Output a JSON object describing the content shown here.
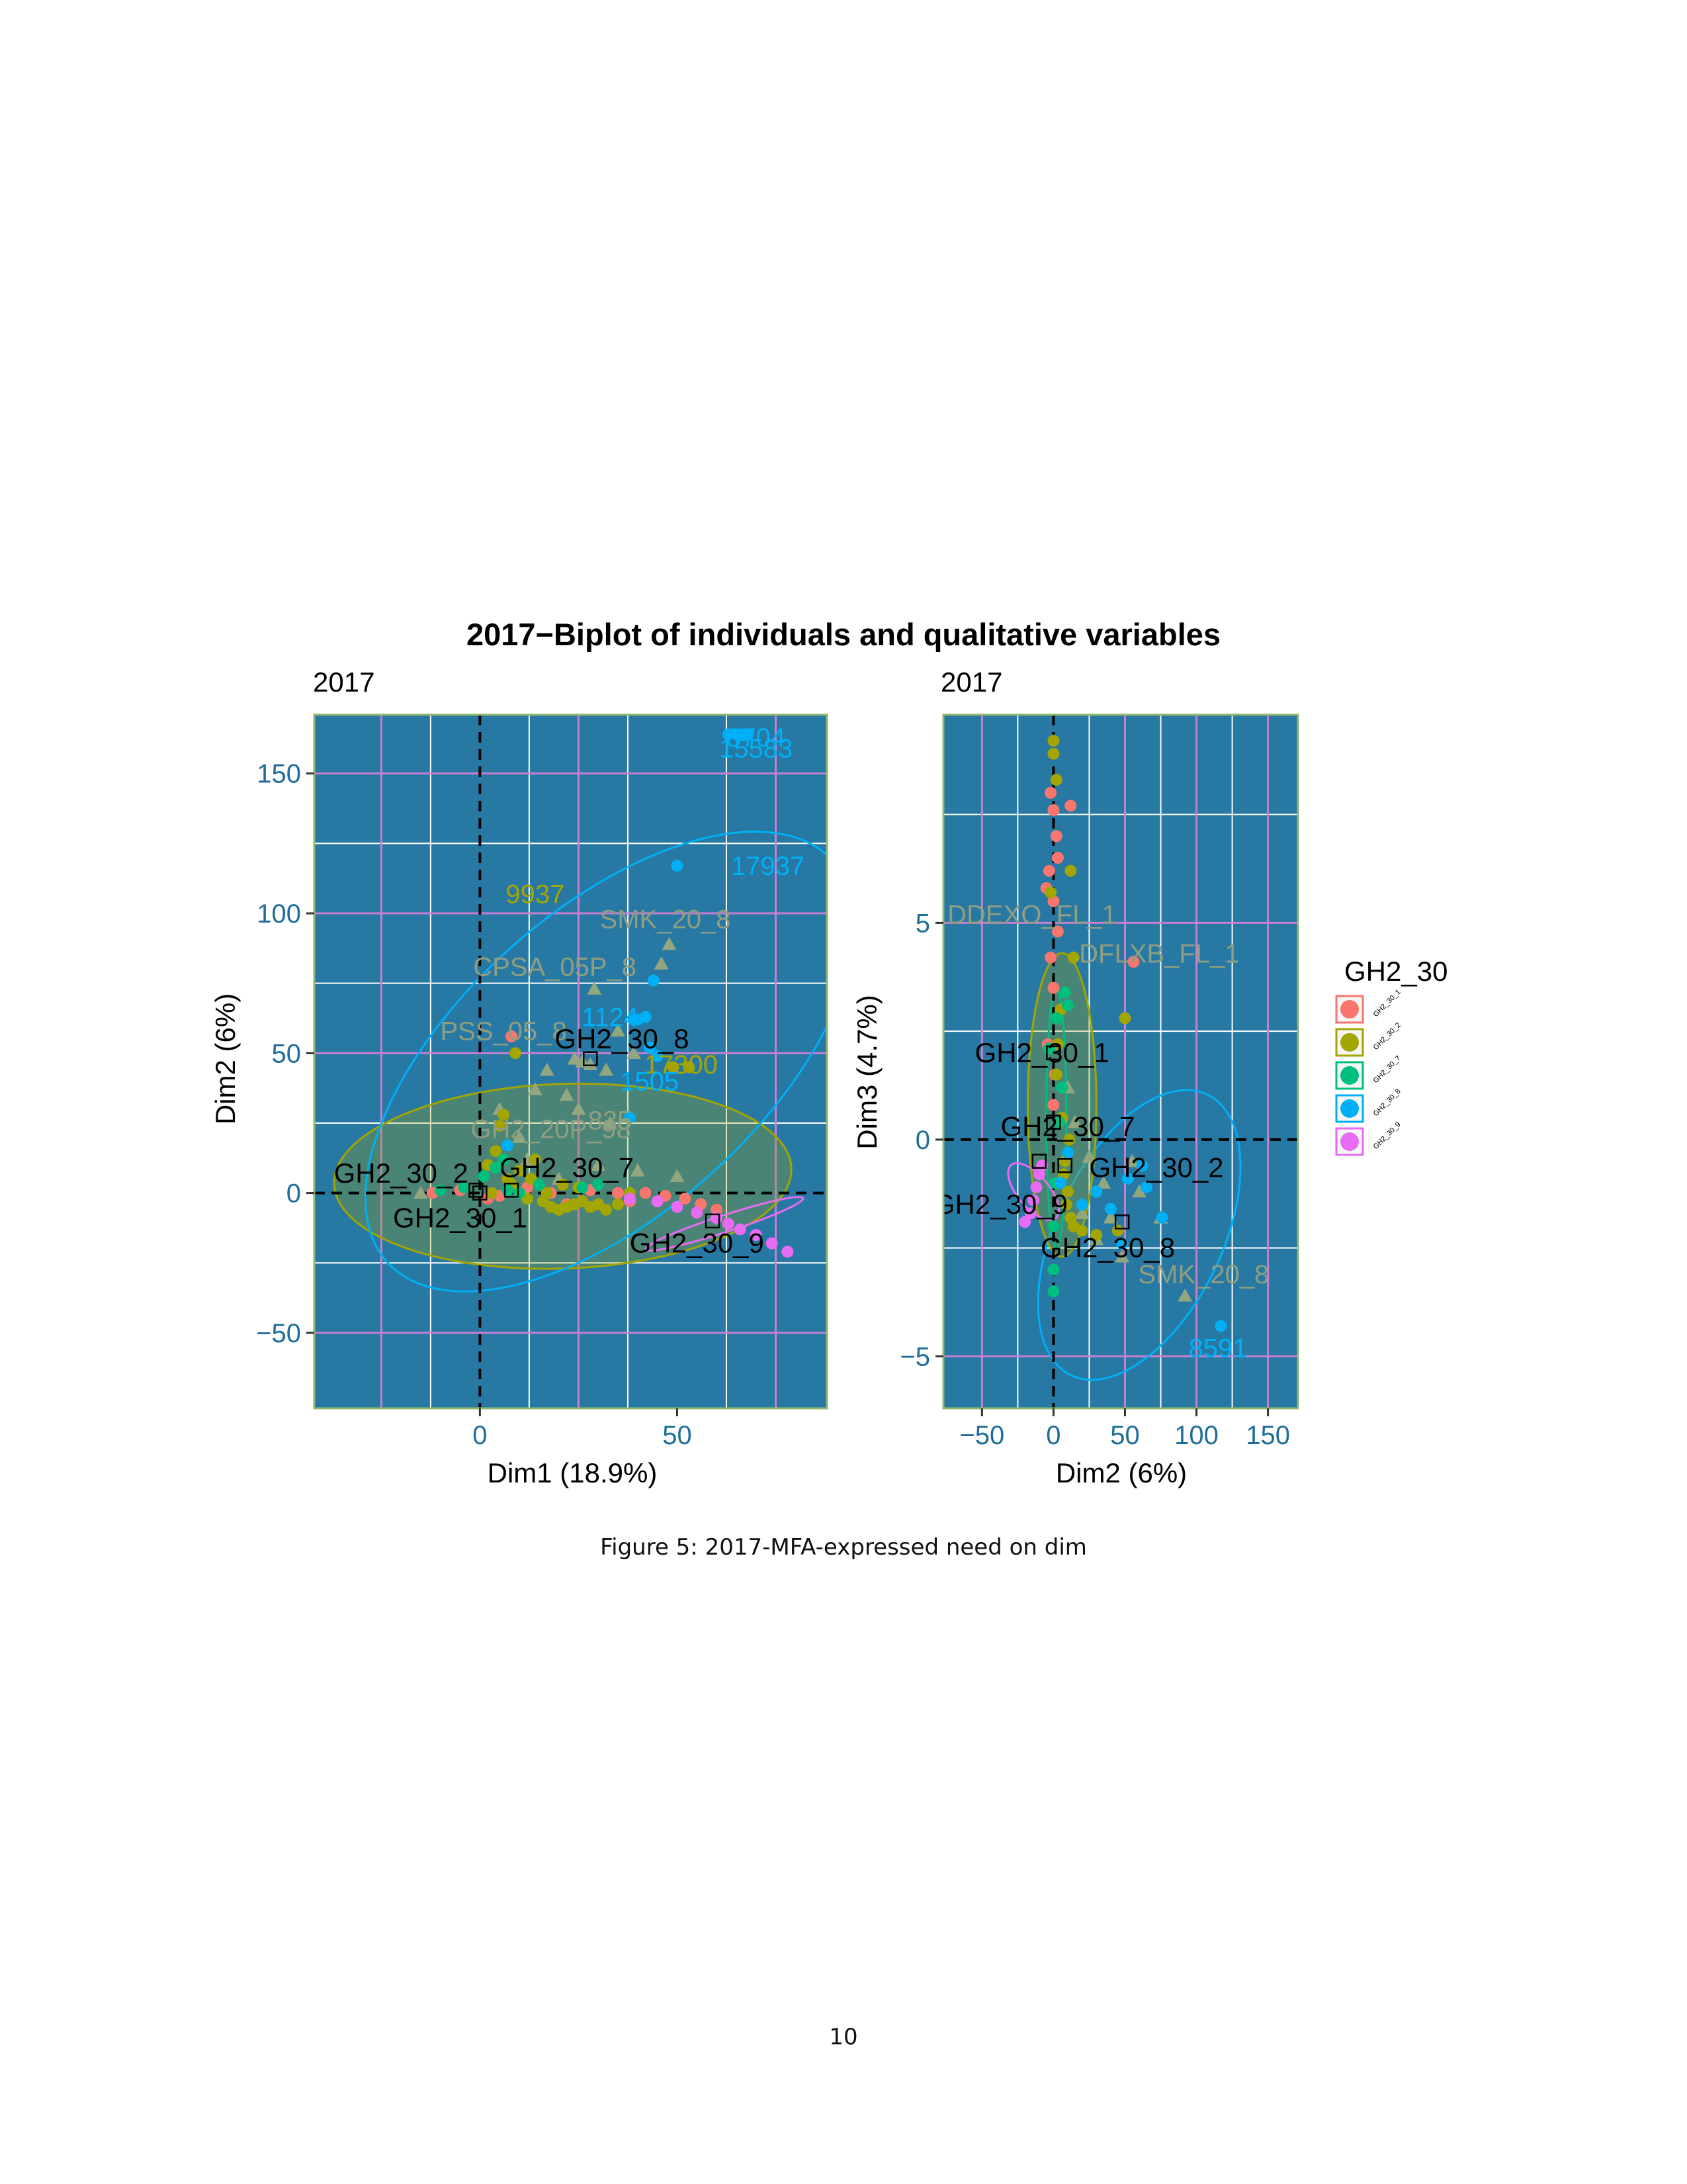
{
  "page": {
    "caption": "Figure 5: 2017-MFA-expressed need on dim",
    "page_number": "10"
  },
  "figure": {
    "title": "2017−Biplot of individuals and qualitative variables",
    "legend": {
      "title": "GH2_30",
      "placement": "right",
      "items": [
        {
          "label": "GH2_30_1",
          "color": "#F8766D"
        },
        {
          "label": "GH2_30_2",
          "color": "#A3A500"
        },
        {
          "label": "GH2_30_7",
          "color": "#00BF7D"
        },
        {
          "label": "GH2_30_8",
          "color": "#00B0F6"
        },
        {
          "label": "GH2_30_9",
          "color": "#E76BF3"
        }
      ]
    }
  },
  "colors": {
    "panel_bg": "#2878A4",
    "grid_major": "#FFFFFF",
    "grid_zero_style": "#C97FD0",
    "panel_border": "#8FB870",
    "axis_text": "#1F6E99",
    "variable_label": "#8E9E80",
    "triangle": "#93A77F"
  },
  "chart_data": [
    {
      "type": "scatter",
      "panel_title": "2017",
      "xlabel": "Dim1 (18.9%)",
      "ylabel": "Dim2 (6%)",
      "xlim": [
        -42,
        88
      ],
      "ylim": [
        -77,
        171
      ],
      "xticks": [
        0,
        50
      ],
      "yticks": [
        -50,
        0,
        50,
        100,
        150
      ],
      "xtick_labels": [
        "0",
        "50"
      ],
      "ytick_labels": [
        "−50",
        "0",
        "50",
        "100",
        "150"
      ],
      "purple_x_lines": [
        -25,
        25,
        75
      ],
      "purple_y_lines": [
        -50,
        50,
        100,
        150
      ],
      "white_x_lines": [
        -12.5,
        12.5,
        37.5,
        62.5
      ],
      "white_y_lines": [
        -25,
        25,
        75,
        125
      ],
      "series": [
        {
          "name": "GH2_30_1",
          "color": "#F8766D",
          "points": [
            [
              -12,
              0
            ],
            [
              -5,
              1
            ],
            [
              2,
              -2
            ],
            [
              5,
              -1
            ],
            [
              8,
              56
            ],
            [
              12,
              2
            ],
            [
              18,
              0
            ],
            [
              22,
              -4
            ],
            [
              28,
              1
            ],
            [
              35,
              0
            ],
            [
              38,
              -3
            ],
            [
              42,
              0
            ],
            [
              47,
              -1
            ],
            [
              52,
              -2
            ],
            [
              56,
              -4
            ],
            [
              60,
              -6
            ]
          ]
        },
        {
          "name": "GH2_30_2",
          "color": "#A3A500",
          "points": [
            [
              3,
              0
            ],
            [
              2,
              10
            ],
            [
              4,
              15
            ],
            [
              5,
              24
            ],
            [
              6,
              28
            ],
            [
              7,
              5
            ],
            [
              8,
              3
            ],
            [
              9,
              50
            ],
            [
              10,
              8
            ],
            [
              12,
              -2
            ],
            [
              14,
              12
            ],
            [
              16,
              -3
            ],
            [
              18,
              -5
            ],
            [
              20,
              -6
            ],
            [
              22,
              -5
            ],
            [
              24,
              -4
            ],
            [
              26,
              -3
            ],
            [
              28,
              -5
            ],
            [
              30,
              -4
            ],
            [
              32,
              -6
            ],
            [
              35,
              -4
            ],
            [
              38,
              0
            ],
            [
              49,
              45
            ],
            [
              53,
              45
            ],
            [
              13,
              5
            ],
            [
              17,
              0
            ],
            [
              21,
              3
            ],
            [
              25,
              2
            ]
          ]
        },
        {
          "name": "GH2_30_7",
          "color": "#00BF7D",
          "points": [
            [
              -10,
              1
            ],
            [
              -4,
              2
            ],
            [
              1,
              6
            ],
            [
              4,
              9
            ],
            [
              6,
              12
            ],
            [
              7,
              1
            ],
            [
              10,
              0
            ],
            [
              15,
              3
            ],
            [
              26,
              2
            ],
            [
              30,
              3
            ]
          ]
        },
        {
          "name": "GH2_30_8",
          "color": "#00B0F6",
          "points": [
            [
              50,
              117
            ],
            [
              63,
              164
            ],
            [
              65,
              164
            ],
            [
              66,
              164
            ],
            [
              68,
              164
            ],
            [
              39,
              62
            ],
            [
              40,
              62
            ],
            [
              42,
              63
            ],
            [
              44,
              76
            ],
            [
              38,
              27
            ],
            [
              7,
              17
            ],
            [
              45,
              49
            ],
            [
              43,
              52
            ]
          ]
        },
        {
          "name": "GH2_30_9",
          "color": "#E76BF3",
          "points": [
            [
              38,
              -2
            ],
            [
              45,
              -3
            ],
            [
              50,
              -5
            ],
            [
              55,
              -7
            ],
            [
              60,
              -9
            ],
            [
              63,
              -11
            ],
            [
              66,
              -13
            ],
            [
              70,
              -15
            ],
            [
              74,
              -18
            ],
            [
              78,
              -21
            ]
          ]
        }
      ],
      "triangles": [
        [
          -15,
          0
        ],
        [
          5,
          30
        ],
        [
          10,
          20
        ],
        [
          14,
          37
        ],
        [
          17,
          44
        ],
        [
          22,
          35
        ],
        [
          24,
          48
        ],
        [
          26,
          47
        ],
        [
          28,
          46
        ],
        [
          29,
          73
        ],
        [
          32,
          44
        ],
        [
          35,
          58
        ],
        [
          39,
          50
        ],
        [
          46,
          82
        ],
        [
          48,
          89
        ],
        [
          25,
          30
        ],
        [
          12,
          12
        ],
        [
          30,
          10
        ],
        [
          40,
          8
        ],
        [
          50,
          6
        ],
        [
          20,
          5
        ],
        [
          33,
          25
        ]
      ],
      "ellipses": [
        {
          "group": "GH2_30_2",
          "cx": 21,
          "cy": 6,
          "rx": 58,
          "ry": 33,
          "angle": 2,
          "fill": true
        },
        {
          "group": "GH2_30_8",
          "cx": 33,
          "cy": 47,
          "rx": 76,
          "ry": 54,
          "angle": 42,
          "fill": false
        },
        {
          "group": "GH2_30_9",
          "cx": 62,
          "cy": -11,
          "rx": 21,
          "ry": 3,
          "angle": 18,
          "fill": false
        }
      ],
      "centroids": [
        {
          "label": "GH2_30_2",
          "x": -1,
          "y": 1
        },
        {
          "label": "GH2_30_1",
          "x": 0,
          "y": 0
        },
        {
          "label": "GH2_30_7",
          "x": 8,
          "y": 1
        },
        {
          "label": "GH2_30_8",
          "x": 28,
          "y": 48
        },
        {
          "label": "GH2_30_9",
          "x": 59,
          "y": -10
        }
      ],
      "category_labels": [
        {
          "label": "GH2_30_8",
          "x": 36,
          "y": 55
        },
        {
          "label": "GH2_30_2",
          "x": -20,
          "y": 7
        },
        {
          "label": "GH2_30_7",
          "x": 22,
          "y": 9
        },
        {
          "label": "GH2_30_1",
          "x": -5,
          "y": -9
        },
        {
          "label": "GH2_30_9",
          "x": 55,
          "y": -18
        }
      ],
      "variable_labels": [
        {
          "label": "SMK_20_8",
          "x": 47,
          "y": 98
        },
        {
          "label": "CPSA_05P_8",
          "x": 19,
          "y": 81
        },
        {
          "label": "PSS_05_8",
          "x": 6,
          "y": 58
        },
        {
          "label": "GH2_20P_98",
          "x": 18,
          "y": 23
        },
        {
          "label": "835",
          "x": 33,
          "y": 26
        }
      ],
      "id_labels": [
        {
          "label": "9937",
          "x": 14,
          "y": 107,
          "color": "#A3A500"
        },
        {
          "label": "17937",
          "x": 73,
          "y": 117,
          "color": "#00B0F6"
        },
        {
          "label": "1124",
          "x": 33,
          "y": 63,
          "color": "#00B0F6"
        },
        {
          "label": "17300",
          "x": 51,
          "y": 46,
          "color": "#A3A500"
        },
        {
          "label": "1505",
          "x": 43,
          "y": 40,
          "color": "#00B0F6"
        },
        {
          "label": "8704",
          "x": 70,
          "y": 163,
          "color": "#00B0F6"
        },
        {
          "label": "15583",
          "x": 70,
          "y": 159,
          "color": "#00B0F6"
        }
      ]
    },
    {
      "type": "scatter",
      "panel_title": "2017",
      "xlabel": "Dim2 (6%)",
      "ylabel": "Dim3 (4.7%)",
      "xlim": [
        -77,
        171
      ],
      "ylim": [
        -6.2,
        9.8
      ],
      "xticks": [
        -50,
        0,
        50,
        100,
        150
      ],
      "yticks": [
        -5,
        0,
        5
      ],
      "xtick_labels": [
        "−50",
        "0",
        "50",
        "100",
        "150"
      ],
      "ytick_labels": [
        "−5",
        "0",
        "5"
      ],
      "purple_x_lines": [
        -50,
        50,
        100,
        150
      ],
      "purple_y_lines": [
        -5,
        5
      ],
      "white_x_lines": [
        -25,
        25,
        75,
        125
      ],
      "white_y_lines": [
        -2.5,
        2.5,
        7.5
      ],
      "series": [
        {
          "name": "GH2_30_1",
          "color": "#F8766D",
          "points": [
            [
              -2,
              8
            ],
            [
              0,
              7.6
            ],
            [
              2,
              7
            ],
            [
              -3,
              6.2
            ],
            [
              0,
              5.5
            ],
            [
              3,
              4.8
            ],
            [
              -2,
              4.2
            ],
            [
              0,
              3.5
            ],
            [
              2,
              2.8
            ],
            [
              -4,
              2.2
            ],
            [
              1,
              1.5
            ],
            [
              0,
              0.8
            ],
            [
              12,
              7.7
            ],
            [
              56,
              4.1
            ],
            [
              -5,
              5.8
            ],
            [
              3,
              6.5
            ]
          ]
        },
        {
          "name": "GH2_30_2",
          "color": "#A3A500",
          "points": [
            [
              0,
              9.2
            ],
            [
              0,
              8.9
            ],
            [
              2,
              8.3
            ],
            [
              12,
              6.2
            ],
            [
              -2,
              5.7
            ],
            [
              14,
              4.2
            ],
            [
              50,
              2.8
            ],
            [
              2,
              1.5
            ],
            [
              6,
              0.5
            ],
            [
              8,
              -0.5
            ],
            [
              10,
              -1.2
            ],
            [
              12,
              -1.8
            ],
            [
              14,
              -2
            ],
            [
              20,
              -2.1
            ],
            [
              30,
              -2.2
            ],
            [
              45,
              -2.1
            ],
            [
              5,
              3
            ],
            [
              3,
              2.2
            ],
            [
              7,
              -0.8
            ],
            [
              9,
              -1.5
            ],
            [
              11,
              0
            ],
            [
              2,
              -1
            ]
          ]
        },
        {
          "name": "GH2_30_7",
          "color": "#00BF7D",
          "points": [
            [
              8,
              3.4
            ],
            [
              10,
              3.1
            ],
            [
              2,
              2.8
            ],
            [
              -3,
              2.1
            ],
            [
              6,
              1.2
            ],
            [
              4,
              0.4
            ],
            [
              1,
              -1
            ],
            [
              0,
              -2
            ],
            [
              0,
              -3
            ],
            [
              0,
              -3.5
            ]
          ]
        },
        {
          "name": "GH2_30_8",
          "color": "#00B0F6",
          "points": [
            [
              117,
              -4.3
            ],
            [
              65,
              -1.1
            ],
            [
              76,
              -1.8
            ],
            [
              40,
              -1.6
            ],
            [
              62,
              -0.6
            ],
            [
              30,
              -1.2
            ],
            [
              48,
              -2.4
            ],
            [
              52,
              -0.9
            ],
            [
              20,
              -1.5
            ],
            [
              10,
              -0.3
            ],
            [
              5,
              -1
            ]
          ]
        },
        {
          "name": "GH2_30_9",
          "color": "#E76BF3",
          "points": [
            [
              -10,
              -0.8
            ],
            [
              -12,
              -1.1
            ],
            [
              -14,
              -1.4
            ],
            [
              -16,
              -1.7
            ],
            [
              -20,
              -1.9
            ],
            [
              -8,
              -0.6
            ]
          ]
        }
      ],
      "triangles": [
        [
          60,
          -1.2
        ],
        [
          48,
          -2.7
        ],
        [
          75,
          -1.8
        ],
        [
          40,
          -1.8
        ],
        [
          92,
          -3.6
        ],
        [
          30,
          -2.3
        ],
        [
          20,
          -1.7
        ],
        [
          10,
          1.2
        ],
        [
          15,
          0.4
        ],
        [
          35,
          -1
        ],
        [
          55,
          -0.5
        ],
        [
          25,
          -0.4
        ]
      ],
      "ellipses": [
        {
          "group": "GH2_30_8",
          "cx": 60,
          "cy": -2.2,
          "rx": 58,
          "ry": 3.6,
          "angle": -26,
          "fill": false
        },
        {
          "group": "GH2_30_2",
          "cx": 6,
          "cy": 0.8,
          "rx": 24,
          "ry": 3.5,
          "angle": 0,
          "fill": true
        },
        {
          "group": "GH2_30_7",
          "cx": 2,
          "cy": 0.5,
          "rx": 7,
          "ry": 3,
          "angle": 0,
          "fill": false
        },
        {
          "group": "GH2_30_9",
          "cx": -14,
          "cy": -1.2,
          "rx": 11,
          "ry": 0.8,
          "angle": 40,
          "fill": false
        }
      ],
      "centroids": [
        {
          "label": "GH2_30_1",
          "x": 0,
          "y": 2
        },
        {
          "label": "GH2_30_7",
          "x": 0,
          "y": 0.4
        },
        {
          "label": "GH2_30_2",
          "x": 8,
          "y": -0.6
        },
        {
          "label": "GH2_30_9",
          "x": -10,
          "y": -0.5
        },
        {
          "label": "GH2_30_8",
          "x": 48,
          "y": -1.9
        }
      ],
      "category_labels": [
        {
          "label": "GH2_30_1",
          "x": -8,
          "y": 2
        },
        {
          "label": "GH2_30_7",
          "x": 10,
          "y": 0.3
        },
        {
          "label": "GH2_30_2",
          "x": 72,
          "y": -0.65
        },
        {
          "label": "GH2_30_9",
          "x": -37,
          "y": -1.5
        },
        {
          "label": "GH2_30_8",
          "x": 38,
          "y": -2.5
        }
      ],
      "variable_labels": [
        {
          "label": "DDEXO_FL_1",
          "x": -15,
          "y": 5.2
        },
        {
          "label": "DFLXB_FL_1",
          "x": 74,
          "y": 4.3
        },
        {
          "label": "SMK_20_8",
          "x": 105,
          "y": -3.1
        }
      ],
      "id_labels": [
        {
          "label": "8591",
          "x": 115,
          "y": -4.8,
          "color": "#00B0F6"
        }
      ]
    }
  ]
}
